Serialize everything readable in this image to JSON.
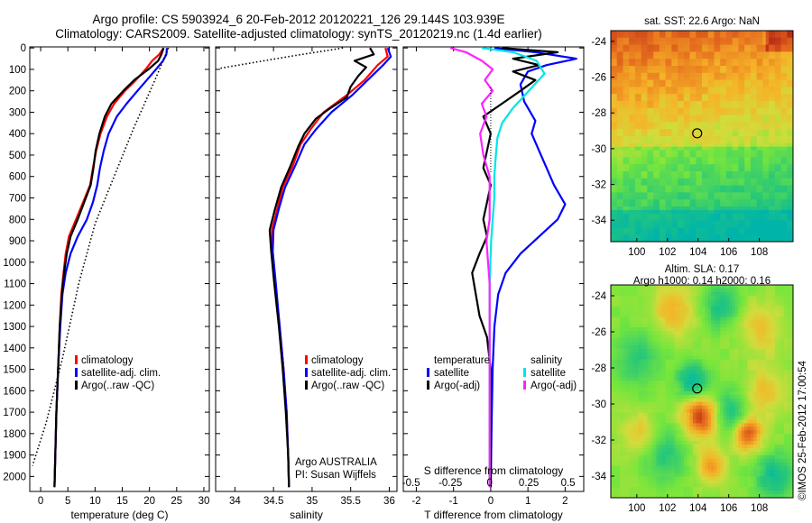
{
  "title": {
    "line1": "Argo profile: CS 5903924_6 20-Feb-2012 20120221_126 29.144S 103.939E",
    "line2": "Climatology: CARS2009. Satellite-adjusted climatology: synTS_20120219.nc (1.4d earlier)"
  },
  "colors": {
    "climatology": "#ff0000",
    "satellite": "#0000ff",
    "argo": "#000000",
    "sal_satellite": "#00e5e5",
    "sal_argo": "#ff22ff"
  },
  "stamp": "©IMOS 25-Feb-2012 17:00:54",
  "chart_data": [
    {
      "type": "line",
      "xlabel": "temperature (deg C)",
      "ylabel": "",
      "xlim": [
        -2,
        31
      ],
      "ylim": [
        2070,
        -5
      ],
      "x_ticks": [
        "0",
        "5",
        "10",
        "15",
        "20",
        "25",
        "30"
      ],
      "y_ticks": [
        "0",
        "100",
        "200",
        "300",
        "400",
        "500",
        "600",
        "700",
        "800",
        "900",
        "1000",
        "1100",
        "1200",
        "1300",
        "1400",
        "1500",
        "1600",
        "1700",
        "1800",
        "1900",
        "2000"
      ],
      "legend": [
        "climatology",
        "satellite-adj. clim.",
        "Argo(..raw -QC)"
      ],
      "legend_position": "lower-right",
      "series": [
        {
          "name": "climatology",
          "color": "#ff0000",
          "points": [
            [
              22.6,
              0
            ],
            [
              21.8,
              30
            ],
            [
              20.5,
              60
            ],
            [
              19.3,
              100
            ],
            [
              17.5,
              150
            ],
            [
              15.5,
              200
            ],
            [
              13.5,
              260
            ],
            [
              12.2,
              320
            ],
            [
              11,
              400
            ],
            [
              10.2,
              480
            ],
            [
              9.6,
              560
            ],
            [
              9.1,
              640
            ],
            [
              7.8,
              720
            ],
            [
              6.5,
              800
            ],
            [
              5.2,
              880
            ],
            [
              4.6,
              960
            ],
            [
              4.2,
              1050
            ],
            [
              3.8,
              1150
            ],
            [
              3.5,
              1300
            ],
            [
              3.2,
              1500
            ],
            [
              2.9,
              1700
            ],
            [
              2.7,
              1900
            ],
            [
              2.55,
              2050
            ]
          ]
        },
        {
          "name": "satellite-adj. clim.",
          "color": "#0000ff",
          "points": [
            [
              23.2,
              0
            ],
            [
              23.1,
              30
            ],
            [
              22.5,
              60
            ],
            [
              21.2,
              100
            ],
            [
              19.5,
              150
            ],
            [
              17.8,
              200
            ],
            [
              15.8,
              260
            ],
            [
              14,
              320
            ],
            [
              12.5,
              400
            ],
            [
              11.6,
              480
            ],
            [
              10.9,
              560
            ],
            [
              10.4,
              640
            ],
            [
              9.6,
              720
            ],
            [
              8.5,
              800
            ],
            [
              6.8,
              880
            ],
            [
              5.5,
              960
            ],
            [
              4.6,
              1050
            ],
            [
              4,
              1150
            ],
            [
              3.6,
              1300
            ],
            [
              3.2,
              1500
            ],
            [
              2.9,
              1700
            ],
            [
              2.7,
              1900
            ],
            [
              2.55,
              2050
            ]
          ]
        },
        {
          "name": "Argo(..raw -QC)",
          "color": "#000000",
          "points": [
            [
              22.6,
              0
            ],
            [
              22.2,
              30
            ],
            [
              21.6,
              60
            ],
            [
              19.8,
              100
            ],
            [
              17.2,
              150
            ],
            [
              15.2,
              200
            ],
            [
              13,
              260
            ],
            [
              11.8,
              320
            ],
            [
              10.8,
              400
            ],
            [
              10.1,
              480
            ],
            [
              9.7,
              560
            ],
            [
              9.2,
              640
            ],
            [
              8,
              720
            ],
            [
              6.8,
              800
            ],
            [
              5.5,
              880
            ],
            [
              4.8,
              960
            ],
            [
              4.3,
              1050
            ],
            [
              3.9,
              1150
            ],
            [
              3.5,
              1300
            ],
            [
              3.2,
              1500
            ],
            [
              2.9,
              1700
            ],
            [
              2.7,
              1900
            ],
            [
              2.55,
              2050
            ]
          ]
        },
        {
          "name": "",
          "color": "#000000",
          "dotted": true,
          "points": [
            [
              23.5,
              0
            ],
            [
              21,
              150
            ],
            [
              17,
              380
            ],
            [
              13.5,
              600
            ],
            [
              10,
              820
            ],
            [
              7,
              1100
            ],
            [
              4,
              1450
            ],
            [
              1,
              1750
            ],
            [
              -1.5,
              1950
            ]
          ]
        }
      ]
    },
    {
      "type": "line",
      "xlabel": "salinity",
      "xlim": [
        33.75,
        36.1
      ],
      "ylim": [
        2070,
        -5
      ],
      "x_ticks": [
        "34",
        "34.5",
        "35",
        "35.5",
        "36"
      ],
      "legend": [
        "climatology",
        "satellite-adj. clim.",
        "Argo(..raw -QC)"
      ],
      "legend_position": "lower-right",
      "annotation": [
        "Argo AUSTRALIA",
        "PI: Susan Wijffels"
      ],
      "series": [
        {
          "name": "climatology",
          "color": "#ff0000",
          "points": [
            [
              35.95,
              0
            ],
            [
              35.98,
              40
            ],
            [
              35.85,
              80
            ],
            [
              35.68,
              150
            ],
            [
              35.45,
              220
            ],
            [
              35.15,
              300
            ],
            [
              34.98,
              380
            ],
            [
              34.85,
              450
            ],
            [
              34.75,
              550
            ],
            [
              34.62,
              650
            ],
            [
              34.55,
              750
            ],
            [
              34.48,
              850
            ],
            [
              34.48,
              950
            ],
            [
              34.52,
              1100
            ],
            [
              34.58,
              1300
            ],
            [
              34.63,
              1500
            ],
            [
              34.67,
              1700
            ],
            [
              34.69,
              1900
            ],
            [
              34.7,
              2050
            ]
          ]
        },
        {
          "name": "satellite-adj. clim.",
          "color": "#0000ff",
          "points": [
            [
              35.98,
              0
            ],
            [
              36.02,
              40
            ],
            [
              35.92,
              80
            ],
            [
              35.72,
              150
            ],
            [
              35.52,
              220
            ],
            [
              35.25,
              300
            ],
            [
              35.05,
              380
            ],
            [
              34.9,
              450
            ],
            [
              34.78,
              550
            ],
            [
              34.65,
              650
            ],
            [
              34.57,
              750
            ],
            [
              34.5,
              850
            ],
            [
              34.49,
              950
            ],
            [
              34.53,
              1100
            ],
            [
              34.58,
              1300
            ],
            [
              34.63,
              1500
            ],
            [
              34.67,
              1700
            ],
            [
              34.69,
              1900
            ],
            [
              34.7,
              2050
            ]
          ]
        },
        {
          "name": "Argo(..raw -QC)",
          "color": "#000000",
          "points": [
            [
              35.75,
              0
            ],
            [
              35.8,
              30
            ],
            [
              35.55,
              60
            ],
            [
              35.7,
              90
            ],
            [
              35.6,
              130
            ],
            [
              35.5,
              180
            ],
            [
              35.45,
              230
            ],
            [
              35.2,
              290
            ],
            [
              35.05,
              330
            ],
            [
              34.9,
              400
            ],
            [
              34.82,
              460
            ],
            [
              34.72,
              550
            ],
            [
              34.6,
              650
            ],
            [
              34.52,
              750
            ],
            [
              34.45,
              850
            ],
            [
              34.47,
              950
            ],
            [
              34.51,
              1100
            ],
            [
              34.57,
              1300
            ],
            [
              34.62,
              1500
            ],
            [
              34.66,
              1700
            ],
            [
              34.69,
              1900
            ],
            [
              34.7,
              2050
            ]
          ]
        },
        {
          "name": "",
          "color": "#000000",
          "dotted": true,
          "points": [
            [
              35.4,
              0
            ],
            [
              34.7,
              40
            ],
            [
              33.8,
              95
            ]
          ]
        }
      ]
    },
    {
      "type": "line",
      "xlabel": "T difference from climatology",
      "x2label": "S difference from climatology",
      "xlim": [
        -2.35,
        2.5
      ],
      "x2lim": [
        -0.55,
        0.6
      ],
      "ylim": [
        2070,
        -5
      ],
      "x_ticks": [
        "-2",
        "-1",
        "0",
        "1",
        "2"
      ],
      "x2_ticks": [
        "-0.5",
        "-0.25",
        "0",
        "0.25",
        "0.5"
      ],
      "legend_groups": [
        {
          "heading": "temperature",
          "items": [
            "satellite",
            "Argo(-adj)"
          ]
        },
        {
          "heading": "salinity",
          "items": [
            "satellite",
            "Argo(-adj)"
          ]
        }
      ],
      "legend_position": "lower",
      "series": [
        {
          "name": "temperature satellite",
          "color": "#0000ff",
          "points": [
            [
              0.1,
              0
            ],
            [
              1.2,
              20
            ],
            [
              2.3,
              50
            ],
            [
              1.5,
              80
            ],
            [
              1,
              110
            ],
            [
              0.8,
              170
            ],
            [
              0.9,
              250
            ],
            [
              1.2,
              340
            ],
            [
              1.1,
              400
            ],
            [
              1.3,
              480
            ],
            [
              1.5,
              560
            ],
            [
              1.7,
              640
            ],
            [
              2,
              730
            ],
            [
              1.8,
              800
            ],
            [
              1.3,
              880
            ],
            [
              0.8,
              960
            ],
            [
              0.4,
              1050
            ],
            [
              0.2,
              1150
            ],
            [
              0.1,
              1300
            ],
            [
              0.05,
              1500
            ],
            [
              0.02,
              1800
            ],
            [
              0,
              2050
            ]
          ]
        },
        {
          "name": "temperature Argo(-adj)",
          "color": "#000000",
          "points": [
            [
              0.3,
              0
            ],
            [
              1.8,
              20
            ],
            [
              0.6,
              50
            ],
            [
              1.3,
              80
            ],
            [
              0.6,
              110
            ],
            [
              1.2,
              150
            ],
            [
              0.8,
              200
            ],
            [
              0.3,
              260
            ],
            [
              -0.2,
              320
            ],
            [
              0,
              400
            ],
            [
              -0.1,
              480
            ],
            [
              -0.2,
              560
            ],
            [
              0,
              640
            ],
            [
              -0.1,
              720
            ],
            [
              -0.2,
              800
            ],
            [
              -0.1,
              880
            ],
            [
              -0.3,
              960
            ],
            [
              -0.5,
              1050
            ],
            [
              -0.4,
              1150
            ],
            [
              -0.3,
              1250
            ],
            [
              -0.1,
              1350
            ],
            [
              0,
              1500
            ],
            [
              0,
              1800
            ],
            [
              0,
              2050
            ]
          ]
        },
        {
          "name": "salinity satellite",
          "color": "#00e5e5",
          "points": [
            [
              -0.05,
              0
            ],
            [
              0.15,
              20
            ],
            [
              0.3,
              60
            ],
            [
              0.35,
              120
            ],
            [
              0.25,
              200
            ],
            [
              0.15,
              280
            ],
            [
              0.08,
              350
            ],
            [
              0.05,
              420
            ],
            [
              0.04,
              500
            ],
            [
              0.03,
              600
            ],
            [
              0.03,
              700
            ],
            [
              0.02,
              800
            ],
            [
              0.01,
              900
            ],
            [
              0,
              1100
            ],
            [
              0,
              1400
            ],
            [
              0,
              1700
            ],
            [
              0,
              2050
            ]
          ]
        },
        {
          "name": "salinity Argo(-adj)",
          "color": "#ff22ff",
          "points": [
            [
              -0.25,
              0
            ],
            [
              -0.15,
              20
            ],
            [
              -0.05,
              60
            ],
            [
              0.02,
              100
            ],
            [
              -0.03,
              150
            ],
            [
              0.02,
              200
            ],
            [
              -0.05,
              260
            ],
            [
              -0.02,
              320
            ],
            [
              -0.06,
              400
            ],
            [
              -0.04,
              500
            ],
            [
              0,
              600
            ],
            [
              0,
              800
            ],
            [
              -0.02,
              900
            ],
            [
              0,
              1100
            ],
            [
              0,
              1400
            ],
            [
              0,
              1700
            ],
            [
              0,
              2050
            ]
          ]
        }
      ]
    },
    {
      "type": "heatmap",
      "title": "sat. SST: 22.6  Argo: NaN",
      "xlim": [
        98.3,
        110.2
      ],
      "ylim": [
        -35.2,
        -23.4
      ],
      "x_ticks": [
        "100",
        "102",
        "104",
        "106",
        "108"
      ],
      "y_ticks": [
        "-24",
        "-26",
        "-28",
        "-30",
        "-32",
        "-34"
      ],
      "marker": [
        103.94,
        -29.14
      ]
    },
    {
      "type": "heatmap",
      "title": "Altim. SLA: 0.17",
      "subtitle": "Argo h1000: 0.14  h2000: 0.16",
      "xlim": [
        98.3,
        110.2
      ],
      "ylim": [
        -35.2,
        -23.4
      ],
      "x_ticks": [
        "100",
        "102",
        "104",
        "106",
        "108"
      ],
      "y_ticks": [
        "-24",
        "-26",
        "-28",
        "-30",
        "-32",
        "-34"
      ],
      "marker": [
        103.94,
        -29.14
      ]
    }
  ]
}
